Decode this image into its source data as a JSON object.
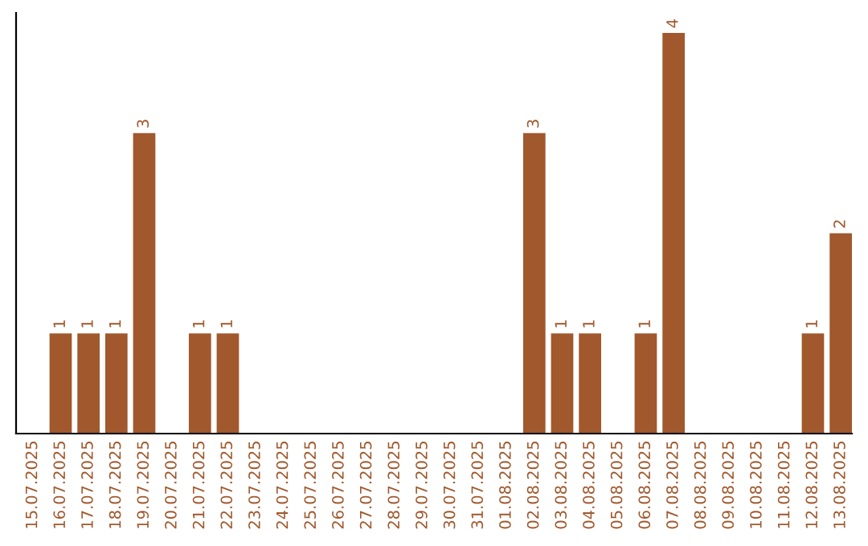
{
  "chart_data": {
    "type": "bar",
    "categories": [
      "15.07.2025",
      "16.07.2025",
      "17.07.2025",
      "18.07.2025",
      "19.07.2025",
      "20.07.2025",
      "21.07.2025",
      "22.07.2025",
      "23.07.2025",
      "24.07.2025",
      "25.07.2025",
      "26.07.2025",
      "27.07.2025",
      "28.07.2025",
      "29.07.2025",
      "30.07.2025",
      "31.07.2025",
      "01.08.2025",
      "02.08.2025",
      "03.08.2025",
      "04.08.2025",
      "05.08.2025",
      "06.08.2025",
      "07.08.2025",
      "08.08.2025",
      "09.08.2025",
      "10.08.2025",
      "11.08.2025",
      "12.08.2025",
      "13.08.2025"
    ],
    "values": [
      0,
      1,
      1,
      1,
      3,
      0,
      1,
      1,
      0,
      0,
      0,
      0,
      0,
      0,
      0,
      0,
      0,
      0,
      3,
      1,
      1,
      0,
      1,
      4,
      0,
      0,
      0,
      0,
      1,
      2
    ],
    "value_labels": [
      null,
      "1",
      "1",
      "1",
      "3",
      null,
      "1",
      "1",
      null,
      null,
      null,
      null,
      null,
      null,
      null,
      null,
      null,
      null,
      "3",
      "1",
      "1",
      null,
      "1",
      "4",
      null,
      null,
      null,
      null,
      "1",
      "2"
    ],
    "color": "#a0582c",
    "tick_labels": "x",
    "grid": false
  }
}
